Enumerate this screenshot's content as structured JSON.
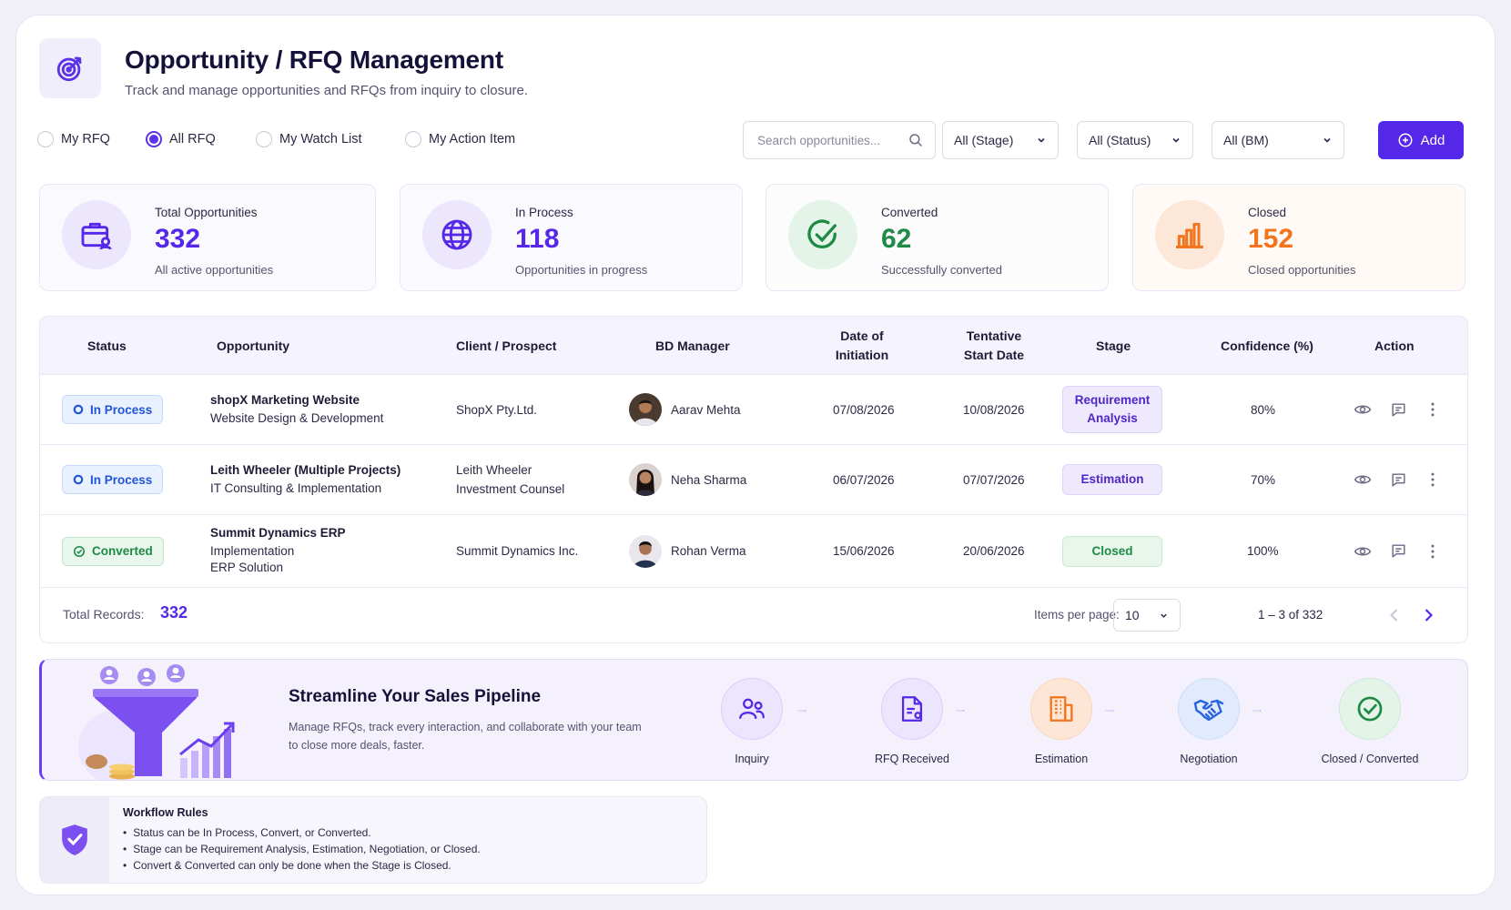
{
  "header": {
    "title": "Opportunity / RFQ Management",
    "subtitle": "Track and manage opportunities and RFQs from inquiry to closure."
  },
  "filters": {
    "radios": [
      "My RFQ",
      "All RFQ",
      "My Watch List",
      "My Action Item"
    ],
    "selected_radio": "All RFQ",
    "search_placeholder": "Search opportunities...",
    "stage": "All (Stage)",
    "status": "All (Status)",
    "bm": "All (BM)",
    "add_label": "Add"
  },
  "stats": [
    {
      "label": "Total Opportunities",
      "value": "332",
      "desc": "All active opportunities",
      "color": "#5527e8",
      "icon": "briefcase-user-icon"
    },
    {
      "label": "In Process",
      "value": "118",
      "desc": "Opportunities in progress",
      "color": "#5527e8",
      "icon": "globe-icon"
    },
    {
      "label": "Converted",
      "value": "62",
      "desc": "Successfully converted",
      "color": "#1f8a45",
      "icon": "check-circle-icon"
    },
    {
      "label": "Closed",
      "value": "152",
      "desc": "Closed opportunities",
      "color": "#f2741c",
      "icon": "bar-chart-icon"
    }
  ],
  "table": {
    "headers": {
      "status": "Status",
      "opportunity": "Opportunity",
      "client": "Client / Prospect",
      "bd": "BD Manager",
      "doi_1": "Date of",
      "doi_2": "Initiation",
      "tsd_1": "Tentative",
      "tsd_2": "Start Date",
      "stage": "Stage",
      "confidence": "Confidence (%)",
      "action": "Action"
    },
    "rows": [
      {
        "status": "In Process",
        "opp_title": "shopX Marketing Website",
        "opp_sub_1": "Website Design & Development",
        "opp_sub_2": "",
        "client_1": "ShopX Pty.Ltd.",
        "client_2": "",
        "bd": "Aarav Mehta",
        "doi": "07/08/2026",
        "tsd": "10/08/2026",
        "stage_1": "Requirement",
        "stage_2": "Analysis",
        "confidence": "80%"
      },
      {
        "status": "In Process",
        "opp_title": "Leith Wheeler (Multiple Projects)",
        "opp_sub_1": "IT Consulting & Implementation",
        "opp_sub_2": "",
        "client_1": "Leith Wheeler",
        "client_2": "Investment Counsel",
        "bd": "Neha Sharma",
        "doi": "06/07/2026",
        "tsd": "07/07/2026",
        "stage_1": "Estimation",
        "stage_2": "",
        "confidence": "70%"
      },
      {
        "status": "Converted",
        "opp_title": "Summit Dynamics ERP",
        "opp_sub_1": "Implementation",
        "opp_sub_2": "ERP Solution",
        "client_1": "Summit Dynamics Inc.",
        "client_2": "",
        "bd": "Rohan Verma",
        "doi": "15/06/2026",
        "tsd": "20/06/2026",
        "stage_1": "Closed",
        "stage_2": "",
        "confidence": "100%"
      }
    ],
    "footer": {
      "total_label": "Total Records:",
      "total_value": "332",
      "items_label": "Items per page:",
      "items_value": "10",
      "range": "1 – 3 of 332"
    }
  },
  "banner": {
    "title": "Streamline Your Sales Pipeline",
    "desc": "Manage RFQs, track every interaction, and collaborate with your team to close more deals, faster.",
    "steps": [
      "Inquiry",
      "RFQ Received",
      "Estimation",
      "Negotiation",
      "Closed / Converted"
    ]
  },
  "rules": {
    "title": "Workflow Rules",
    "items": [
      "Status can be In Process, Convert, or Converted.",
      "Stage can be Requirement Analysis, Estimation, Negotiation, or Closed.",
      "Convert & Converted can only be done when the Stage is Closed."
    ]
  }
}
